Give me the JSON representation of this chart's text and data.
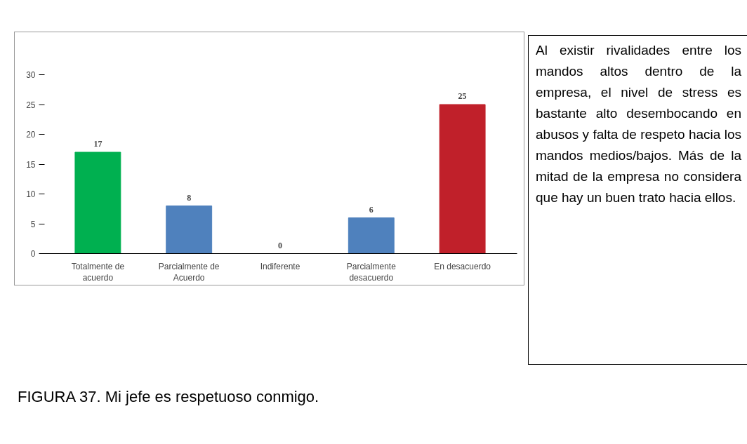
{
  "chart_data": {
    "type": "bar",
    "categories": [
      "Totalmente de\nacuerdo",
      "Parcialmente de\nAcuerdo",
      "Indiferente",
      "Parcialmente\ndesacuerdo",
      "En desacuerdo"
    ],
    "values": [
      17,
      8,
      0,
      6,
      25
    ],
    "colors": [
      "#00b050",
      "#4f81bd",
      "#4f81bd",
      "#4f81bd",
      "#c0202a"
    ],
    "ylim": [
      0,
      30
    ],
    "yticks": [
      0,
      5,
      10,
      15,
      20,
      25,
      30
    ],
    "data_labels": true,
    "grid": false,
    "annotations": [
      "Al existir rivalidades entre los mandos altos dentro de la empresa, el nivel de stress es bastante alto desembocando en abusos y falta de respeto hacia los mandos medios/bajos. Más de la mitad de la empresa no considera que hay un buen trato hacia ellos.",
      "FIGURA 37. Mi jefe es respetuoso conmigo."
    ]
  }
}
